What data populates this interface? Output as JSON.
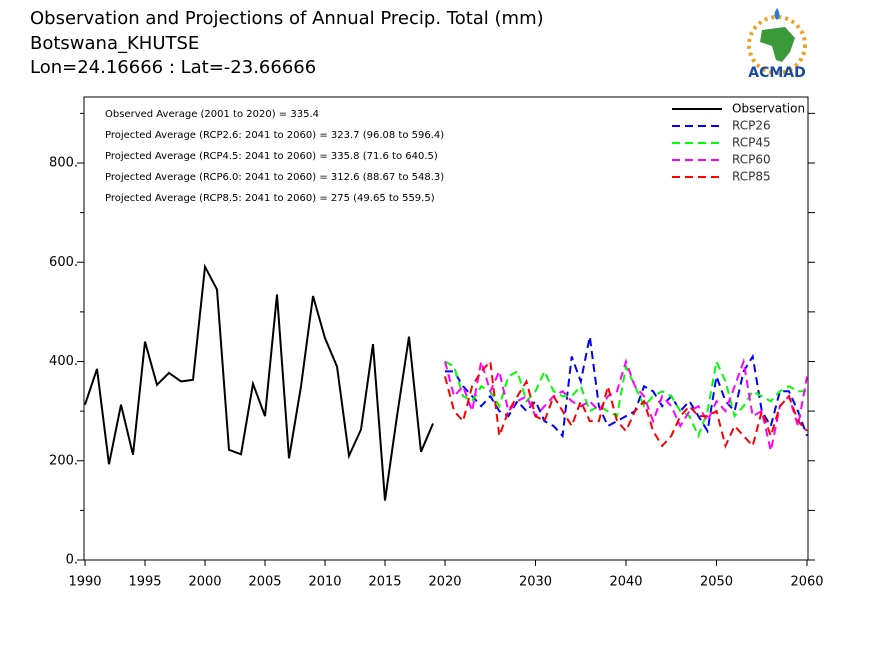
{
  "chart_data": {
    "type": "line",
    "title": "Observation and Projections of Annual Precip. Total (mm)",
    "subtitle": "Botswana_KHUTSE",
    "location": "Lon=24.16666 : Lat=-23.66666",
    "logo_text": "ACMAD",
    "annotations": [
      "Observed Average (2001 to 2020) = 335.4",
      "Projected Average (RCP2.6: 2041 to 2060) = 323.7 (96.08 to 596.4)",
      "Projected Average (RCP4.5: 2041 to 2060) = 335.8 (71.6 to 640.5)",
      "Projected Average (RCP6.0: 2041 to 2060) = 312.6 (88.67 to 548.3)",
      "Projected Average (RCP8.5: 2041 to 2060) = 275 (49.65 to 559.5)"
    ],
    "xlim": [
      1990,
      2060
    ],
    "xticks": [
      1990,
      1995,
      2000,
      2005,
      2010,
      2015,
      2020,
      2030,
      2040,
      2050,
      2060
    ],
    "ylim": [
      0,
      933
    ],
    "yticks": [
      {
        "value": 0,
        "label": "0."
      },
      {
        "value": 200,
        "label": "200."
      },
      {
        "value": 400,
        "label": "400."
      },
      {
        "value": 600,
        "label": "600."
      },
      {
        "value": 800,
        "label": "800."
      }
    ],
    "yminor": [
      100,
      300,
      500,
      700,
      900
    ],
    "legend": "top-right",
    "series": [
      {
        "name": "Observation",
        "color": "#000000",
        "dash": "solid",
        "x": [
          1990,
          1991,
          1992,
          1993,
          1994,
          1995,
          1996,
          1997,
          1998,
          1999,
          2000,
          2001,
          2002,
          2003,
          2004,
          2005,
          2006,
          2007,
          2008,
          2009,
          2010,
          2011,
          2012,
          2013,
          2014,
          2015,
          2016,
          2017,
          2018,
          2019
        ],
        "values": [
          313,
          385,
          193,
          313,
          212,
          440,
          353,
          377,
          360,
          363,
          591,
          545,
          222,
          213,
          355,
          290,
          535,
          205,
          350,
          532,
          447,
          390,
          210,
          263,
          435,
          120,
          290,
          450,
          218,
          275
        ]
      },
      {
        "name": "RCP26",
        "color": "#0000ff",
        "dash": "dashed",
        "x_start": 2020,
        "values": [
          380,
          380,
          350,
          330,
          310,
          330,
          300,
          290,
          320,
          300,
          320,
          280,
          270,
          250,
          410,
          360,
          450,
          310,
          270,
          280,
          290,
          300,
          350,
          340,
          310,
          330,
          300,
          320,
          290,
          260,
          370,
          320,
          300,
          380,
          410,
          300,
          270,
          340,
          340,
          300,
          250
        ]
      },
      {
        "name": "RCP45",
        "color": "#00ff00",
        "dash": "dashed",
        "x_start": 2020,
        "values": [
          400,
          390,
          330,
          320,
          350,
          340,
          310,
          370,
          380,
          320,
          340,
          380,
          340,
          330,
          330,
          350,
          300,
          310,
          300,
          290,
          390,
          350,
          310,
          330,
          340,
          330,
          300,
          290,
          250,
          300,
          400,
          360,
          290,
          310,
          340,
          330,
          320,
          340,
          350,
          340,
          340
        ]
      },
      {
        "name": "RCP60",
        "color": "#ff00ff",
        "dash": "dashed",
        "x_start": 2020,
        "values": [
          400,
          330,
          350,
          300,
          400,
          340,
          380,
          300,
          320,
          330,
          290,
          310,
          330,
          340,
          320,
          310,
          320,
          300,
          330,
          340,
          400,
          350,
          330,
          280,
          330,
          310,
          270,
          300,
          310,
          280,
          320,
          300,
          350,
          400,
          290,
          300,
          220,
          310,
          330,
          270,
          370
        ]
      },
      {
        "name": "RCP85",
        "color": "#ff0000",
        "dash": "dashed",
        "x_start": 2020,
        "values": [
          370,
          300,
          280,
          350,
          380,
          400,
          250,
          300,
          330,
          360,
          290,
          280,
          330,
          300,
          270,
          320,
          280,
          280,
          350,
          280,
          260,
          300,
          320,
          260,
          230,
          250,
          290,
          310,
          290,
          290,
          300,
          230,
          270,
          250,
          230,
          300,
          250,
          310,
          330,
          280,
          260
        ]
      }
    ]
  }
}
